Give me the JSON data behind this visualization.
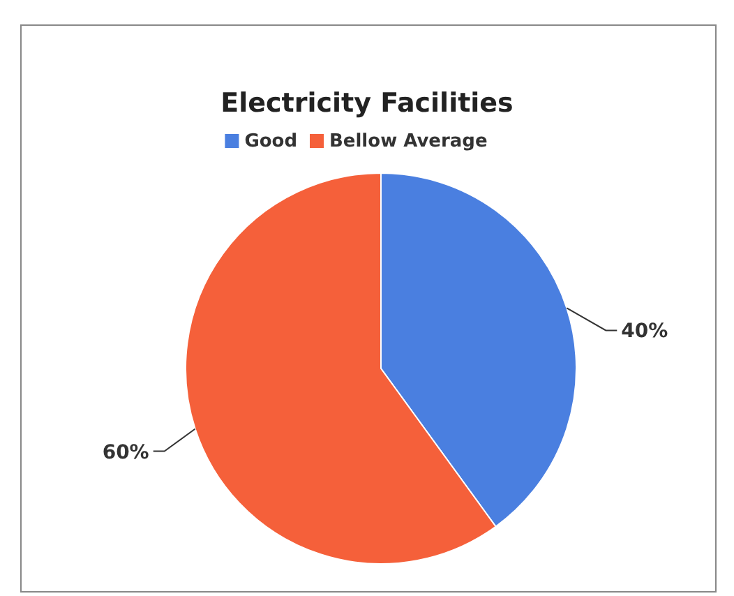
{
  "chart_data": {
    "type": "pie",
    "title": "Electricity Facilities",
    "categories": [
      "Good",
      "Bellow Average"
    ],
    "values": [
      40,
      60
    ],
    "colors": [
      "#4a7fe0",
      "#f5603a"
    ],
    "value_labels": [
      "40%",
      "60%"
    ],
    "legend": "top"
  }
}
